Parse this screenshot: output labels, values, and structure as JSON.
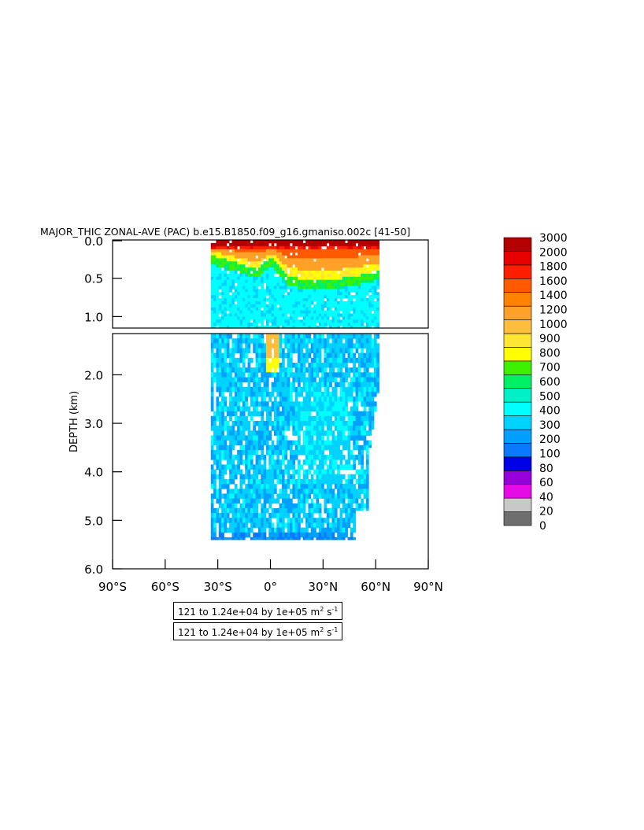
{
  "chart_data": {
    "type": "heatmap",
    "title": "MAJOR_THIC ZONAL-AVE (PAC) b.e15.B1850.f09_g16.gmaniso.002c [41-50]",
    "ylabel": "DEPTH (km)",
    "xlabel": "",
    "x_range": [
      -90,
      90
    ],
    "y_range": [
      0,
      6
    ],
    "y_inverted": true,
    "x_ticks": [
      {
        "value": -90,
        "label": "90°S"
      },
      {
        "value": -60,
        "label": "60°S"
      },
      {
        "value": -30,
        "label": "30°S"
      },
      {
        "value": 0,
        "label": "0°"
      },
      {
        "value": 30,
        "label": "30°N"
      },
      {
        "value": 60,
        "label": "60°N"
      },
      {
        "value": 90,
        "label": "90°N"
      }
    ],
    "y_ticks_upper": [
      {
        "value": 0.0,
        "label": "0.0"
      },
      {
        "value": 0.5,
        "label": "0.5"
      },
      {
        "value": 1.0,
        "label": "1.0"
      }
    ],
    "y_ticks_lower": [
      {
        "value": 2.0,
        "label": "2.0"
      },
      {
        "value": 3.0,
        "label": "3.0"
      },
      {
        "value": 4.0,
        "label": "4.0"
      },
      {
        "value": 5.0,
        "label": "5.0"
      },
      {
        "value": 6.0,
        "label": "6.0"
      }
    ],
    "panel_split_depth": 1.15,
    "colorbar": {
      "levels": [
        "0",
        "20",
        "40",
        "60",
        "80",
        "100",
        "200",
        "300",
        "400",
        "500",
        "600",
        "700",
        "800",
        "900",
        "1000",
        "1200",
        "1400",
        "1600",
        "1800",
        "2000",
        "3000"
      ],
      "colors": [
        "#6e6e6e",
        "#c8c8c8",
        "#e60ae6",
        "#9600dc",
        "#0000e6",
        "#0a78ff",
        "#00a0ff",
        "#00d2ff",
        "#00ffff",
        "#00f0c8",
        "#00f064",
        "#3cf000",
        "#ffff00",
        "#ffe632",
        "#ffbe3c",
        "#ffa028",
        "#ff8200",
        "#ff5a00",
        "#ff1e00",
        "#e60000",
        "#b40000"
      ]
    },
    "data_extent": {
      "lat_min": -34,
      "lat_max": 62,
      "max_depth_km": 5.4
    },
    "annotations": [
      "121 to 1.24e+04 by 1e+05 m² s⁻¹",
      "121 to 1.24e+04 by 1e+05 m² s⁻¹"
    ]
  },
  "info": {
    "box1_main": "121 to 1.24e+04 by 1e+05 m",
    "box1_sup1": "2",
    "box1_mid": " s",
    "box1_sup2": "-1",
    "box2_main": "121 to 1.24e+04 by 1e+05 m",
    "box2_sup1": "2",
    "box2_mid": " s",
    "box2_sup2": "-1"
  }
}
